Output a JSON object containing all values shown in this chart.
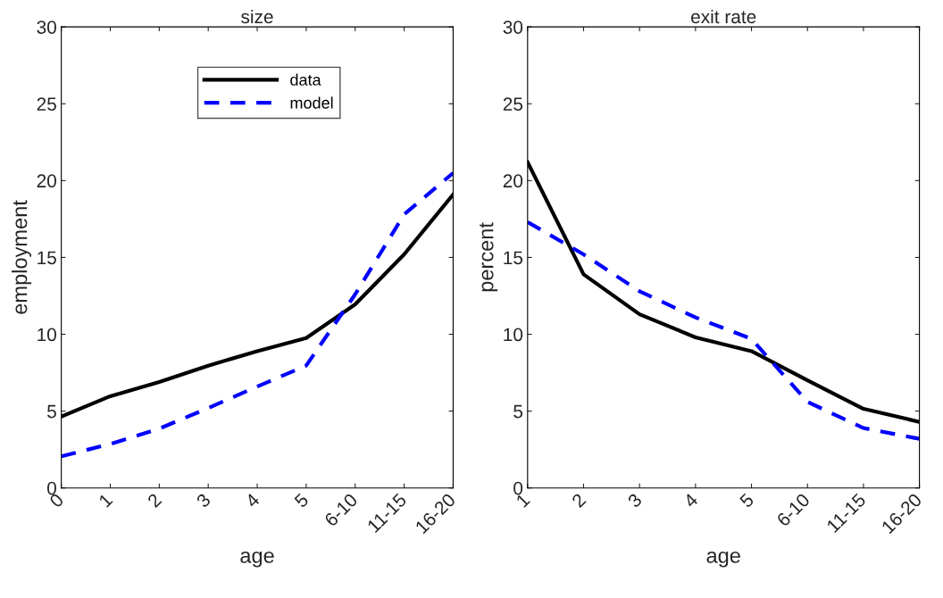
{
  "chart_data": [
    {
      "type": "line",
      "title": "size",
      "xlabel": "age",
      "ylabel": "employment",
      "categories": [
        "0",
        "1",
        "2",
        "3",
        "4",
        "5",
        "6-10",
        "11-15",
        "16-20"
      ],
      "series": [
        {
          "name": "data",
          "color": "#000000",
          "line_style": "solid",
          "values": [
            4.65,
            5.97,
            6.9,
            7.96,
            8.9,
            9.75,
            11.95,
            15.2,
            19.1
          ]
        },
        {
          "name": "model",
          "color": "#0000ff",
          "line_style": "dashed",
          "values": [
            2.06,
            2.86,
            3.86,
            5.2,
            6.6,
            7.96,
            12.6,
            17.8,
            20.5
          ]
        }
      ],
      "ylim": [
        0,
        30
      ],
      "yticks": [
        0,
        5,
        10,
        15,
        20,
        25,
        30
      ],
      "grid": false,
      "legend": "top"
    },
    {
      "type": "line",
      "title": "exit rate",
      "xlabel": "age",
      "ylabel": "percent",
      "categories": [
        "1",
        "2",
        "3",
        "4",
        "5",
        "6-10",
        "11-15",
        "16-20"
      ],
      "series": [
        {
          "color": "#000000",
          "line_style": "solid",
          "values": [
            21.2,
            13.9,
            11.3,
            9.8,
            8.9,
            7.0,
            5.15,
            4.3
          ]
        },
        {
          "color": "#0000ff",
          "line_style": "dashed",
          "values": [
            17.3,
            15.2,
            12.8,
            11.1,
            9.7,
            5.6,
            3.9,
            3.2
          ]
        }
      ],
      "ylim": [
        0,
        30
      ],
      "yticks": [
        0,
        5,
        10,
        15,
        20,
        25,
        30
      ],
      "grid": false,
      "legend": false
    }
  ]
}
